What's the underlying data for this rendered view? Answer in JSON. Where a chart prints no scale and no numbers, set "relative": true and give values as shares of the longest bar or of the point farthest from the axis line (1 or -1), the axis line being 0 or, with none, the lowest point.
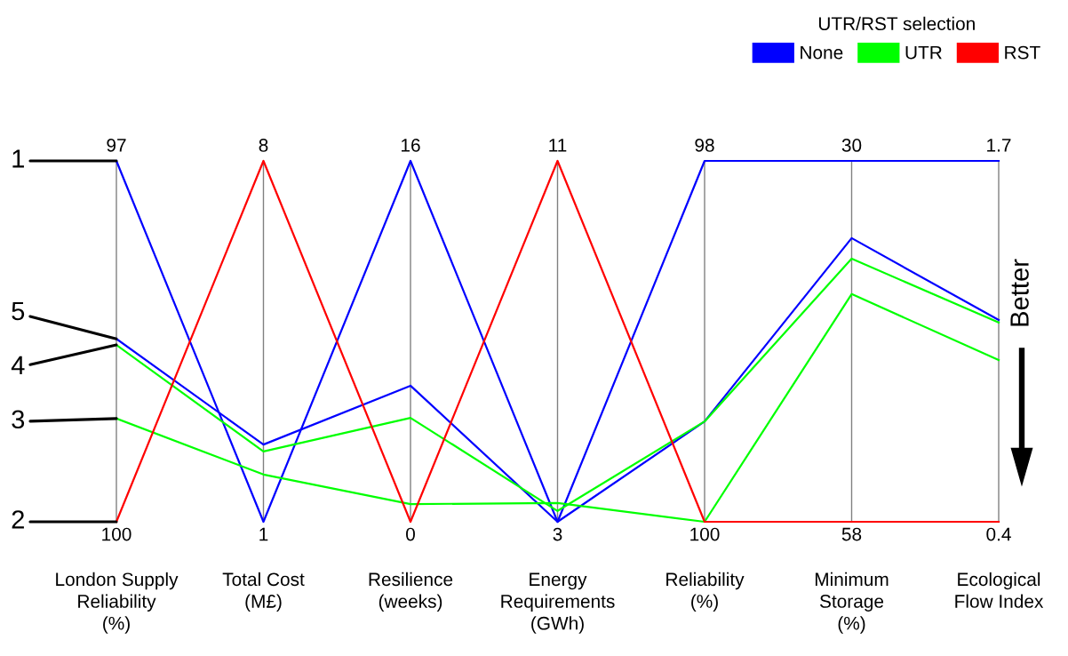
{
  "chart_data": {
    "type": "line",
    "relative": true,
    "grid": "x",
    "legend": "top right",
    "legend_title": "UTR/RST selection",
    "ylabel": "Better",
    "categories": [
      "London Supply\nReliability\n(%)",
      "Total Cost\n(M£)",
      "Resilience\n(weeks)",
      "Energy\nRequirements\n(GWh)",
      "Reliability\n(%)",
      "Minimum\nStorage\n(%)",
      "Ecological\nFlow Index"
    ],
    "series": [
      {
        "name": "None",
        "color": "#0000ff",
        "values": [
          1,
          0,
          1,
          0,
          1,
          1,
          1
        ]
      },
      {
        "color": "#0000ff",
        "values": [
          0.507,
          0.214,
          0.377,
          0,
          0.278,
          0.786,
          0.559
        ]
      },
      {
        "name": "UTR",
        "color": "#00ff00",
        "values": [
          0.49,
          0.195,
          0.288,
          0.03,
          0.278,
          0.729,
          0.552
        ]
      },
      {
        "color": "#00ff00",
        "values": [
          0.286,
          0.131,
          0.049,
          0.052,
          0,
          0.631,
          0.448
        ]
      },
      {
        "name": "RST",
        "color": "#ff0000",
        "values": [
          0,
          1,
          0,
          1,
          0,
          0,
          0
        ]
      }
    ],
    "annotations": [
      {
        "text": "97",
        "x": "London Supply\nReliability\n(%)",
        "y": 1
      },
      {
        "text": "100",
        "x": "London Supply\nReliability\n(%)",
        "y": 0
      },
      {
        "text": "8",
        "x": "Total Cost\n(M£)",
        "y": 1
      },
      {
        "text": "1",
        "x": "Total Cost\n(M£)",
        "y": 0
      },
      {
        "text": "16",
        "x": "Resilience\n(weeks)",
        "y": 1
      },
      {
        "text": "0",
        "x": "Resilience\n(weeks)",
        "y": 0
      },
      {
        "text": "11",
        "x": "Energy\nRequirements\n(GWh)",
        "y": 1
      },
      {
        "text": "3",
        "x": "Energy\nRequirements\n(GWh)",
        "y": 0
      },
      {
        "text": "98",
        "x": "Reliability\n(%)",
        "y": 1
      },
      {
        "text": "100",
        "x": "Reliability\n(%)",
        "y": 0
      },
      {
        "text": "30",
        "x": "Minimum\nStorage\n(%)",
        "y": 1
      },
      {
        "text": "58",
        "x": "Minimum\nStorage\n(%)",
        "y": 0
      },
      {
        "text": "1.7",
        "x": "Ecological\nFlow Index",
        "y": 1
      },
      {
        "text": "0.4",
        "x": "Ecological\nFlow Index",
        "y": 0
      },
      {
        "text": "1",
        "x": "London Supply\nReliability\n(%)",
        "y": 1
      },
      {
        "text": "5",
        "x": "London Supply\nReliability\n(%)",
        "y": 0.507
      },
      {
        "text": "4",
        "x": "London Supply\nReliability\n(%)",
        "y": 0.49
      },
      {
        "text": "3",
        "x": "London Supply\nReliability\n(%)",
        "y": 0.286
      },
      {
        "text": "2",
        "x": "London Supply\nReliability\n(%)",
        "y": 0
      }
    ]
  }
}
